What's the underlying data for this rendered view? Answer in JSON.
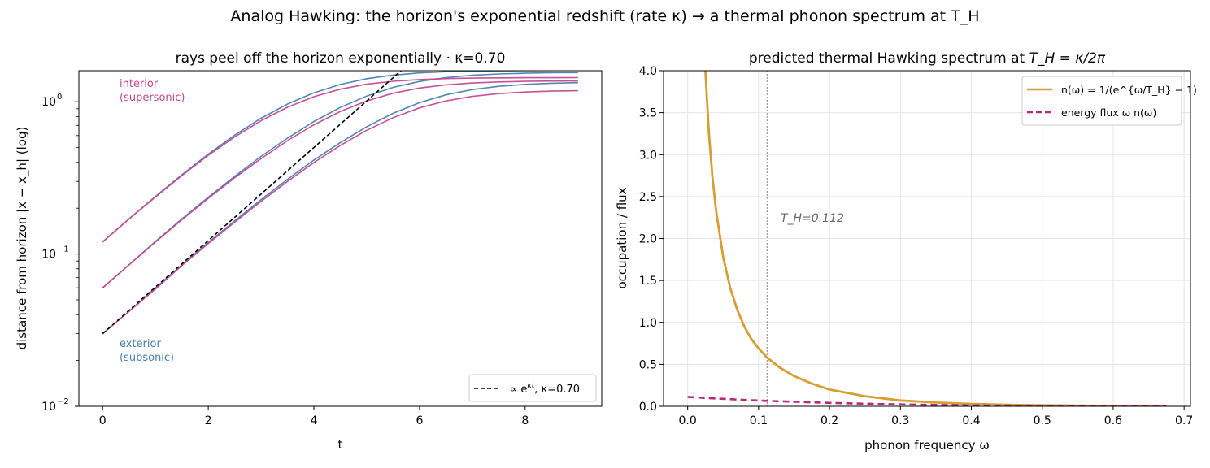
{
  "figure": {
    "suptitle": "Analog Hawking: the horizon's exponential redshift (rate κ) → a thermal phonon spectrum at T_H"
  },
  "colors": {
    "exterior": "#4a7fb3",
    "interior": "#c4488f",
    "fit": "#000000",
    "occupation": "#d69e33",
    "flux": "#b52a7c",
    "th_line": "#999999"
  },
  "chart_data": [
    {
      "type": "line",
      "title": "rays peel off the horizon exponentially  ·  κ=0.70",
      "xlabel": "t",
      "ylabel": "distance from horizon  |x − x_h|  (log)",
      "xlim": [
        -0.45,
        9.45
      ],
      "ylim": [
        0.01,
        1.6
      ],
      "yscale": "log",
      "xticks": [
        0,
        2,
        4,
        6,
        8
      ],
      "xtick_labels": [
        "0",
        "2",
        "4",
        "6",
        "8"
      ],
      "yticks": [
        0.01,
        0.1,
        1
      ],
      "ytick_labels": [
        "10",
        "10",
        "10"
      ],
      "ytick_exponents": [
        "−2",
        "−1",
        "0"
      ],
      "grid": false,
      "legend": {
        "placement": "lower-right",
        "entries": [
          {
            "label": "∝ e^{κt}, κ=0.70",
            "label_main": "∝ e",
            "label_sup": "κt",
            "label_rest": ", κ=0.70"
          }
        ]
      },
      "annotations": {
        "interior": "interior\n(supersonic)",
        "interior_lines": [
          "interior",
          "(supersonic)"
        ],
        "exterior": "exterior\n(subsonic)",
        "exterior_lines": [
          "exterior",
          "(subsonic)"
        ]
      },
      "kappa": 0.7,
      "t": [
        0,
        0.5,
        1,
        1.5,
        2,
        2.5,
        3,
        3.5,
        4,
        4.5,
        5,
        5.5,
        6,
        6.5,
        7,
        7.5,
        8,
        8.5,
        9
      ],
      "series": [
        {
          "group": "exterior",
          "values": [
            0.12,
            0.17,
            0.239,
            0.332,
            0.453,
            0.604,
            0.78,
            0.967,
            1.146,
            1.3,
            1.418,
            1.498,
            1.548,
            1.576,
            1.591,
            1.599,
            1.603,
            1.605,
            1.606
          ]
        },
        {
          "group": "exterior",
          "values": [
            0.06,
            0.085,
            0.121,
            0.17,
            0.236,
            0.324,
            0.438,
            0.578,
            0.742,
            0.918,
            1.09,
            1.243,
            1.36,
            1.441,
            1.493,
            1.524,
            1.541,
            1.551,
            1.556
          ]
        },
        {
          "group": "exterior",
          "values": [
            0.03,
            0.042,
            0.06,
            0.085,
            0.119,
            0.165,
            0.228,
            0.31,
            0.414,
            0.54,
            0.686,
            0.84,
            0.987,
            1.111,
            1.203,
            1.264,
            1.302,
            1.324,
            1.336
          ]
        },
        {
          "group": "interior",
          "values": [
            0.12,
            0.17,
            0.237,
            0.328,
            0.445,
            0.588,
            0.752,
            0.922,
            1.08,
            1.211,
            1.304,
            1.364,
            1.4,
            1.42,
            1.43,
            1.436,
            1.439,
            1.44,
            1.441
          ]
        },
        {
          "group": "interior",
          "values": [
            0.06,
            0.085,
            0.12,
            0.168,
            0.232,
            0.317,
            0.424,
            0.556,
            0.706,
            0.864,
            1.013,
            1.139,
            1.231,
            1.292,
            1.329,
            1.35,
            1.362,
            1.368,
            1.371
          ]
        },
        {
          "group": "interior",
          "values": [
            0.03,
            0.042,
            0.059,
            0.084,
            0.117,
            0.162,
            0.222,
            0.3,
            0.399,
            0.517,
            0.65,
            0.786,
            0.912,
            1.013,
            1.085,
            1.131,
            1.159,
            1.175,
            1.183
          ]
        }
      ],
      "fit_line": {
        "group": "fit",
        "x": [
          0,
          5.65
        ],
        "values": [
          0.03,
          1.6
        ]
      }
    },
    {
      "type": "line",
      "title": "predicted thermal Hawking spectrum at T_H = κ/2π",
      "title_main": "predicted thermal Hawking spectrum at ",
      "title_math": "T_H = κ/2π",
      "xlabel": "phonon frequency  ω",
      "ylabel": "occupation / flux",
      "xlim": [
        -0.034,
        0.709
      ],
      "ylim": [
        0,
        4.0
      ],
      "xticks": [
        0,
        0.1,
        0.2,
        0.3,
        0.4,
        0.5,
        0.6,
        0.7
      ],
      "xtick_labels": [
        "0.0",
        "0.1",
        "0.2",
        "0.3",
        "0.4",
        "0.5",
        "0.6",
        "0.7"
      ],
      "yticks": [
        0,
        0.5,
        1,
        1.5,
        2,
        2.5,
        3,
        3.5,
        4
      ],
      "ytick_labels": [
        "0.0",
        "0.5",
        "1.0",
        "1.5",
        "2.0",
        "2.5",
        "3.0",
        "3.5",
        "4.0"
      ],
      "grid": true,
      "legend": {
        "placement": "upper-right",
        "entries": [
          {
            "label": "n(ω) = 1/(e^{ω/T_H} − 1)"
          },
          {
            "label": "energy flux  ω n(ω)"
          }
        ]
      },
      "T_H": 0.112,
      "th_annotation": "T_H=0.112",
      "x": [
        0.025,
        0.03,
        0.035,
        0.04,
        0.05,
        0.06,
        0.07,
        0.08,
        0.09,
        0.1,
        0.112,
        0.13,
        0.15,
        0.175,
        0.2,
        0.25,
        0.3,
        0.35,
        0.4,
        0.45,
        0.5,
        0.55,
        0.6,
        0.65,
        0.675
      ],
      "series": [
        {
          "name": "n(ω) = 1/(e^{ω/T_H} − 1)",
          "values": [
            3.99,
            3.25,
            2.73,
            2.34,
            1.78,
            1.41,
            1.15,
            0.95,
            0.8,
            0.69,
            0.58,
            0.46,
            0.36,
            0.27,
            0.2,
            0.12,
            0.07,
            0.045,
            0.029,
            0.018,
            0.012,
            0.008,
            0.005,
            0.003,
            0.002
          ]
        },
        {
          "name": "energy flux  ω n(ω)",
          "values": [
            0.1,
            0.097,
            0.095,
            0.094,
            0.089,
            0.085,
            0.08,
            0.076,
            0.072,
            0.069,
            0.065,
            0.06,
            0.054,
            0.047,
            0.041,
            0.031,
            0.022,
            0.016,
            0.011,
            0.008,
            0.006,
            0.004,
            0.003,
            0.002,
            0.0015
          ]
        }
      ],
      "series_full_start": {
        "x": [
          0,
          0.01,
          0.02
        ],
        "flux": [
          0.112,
          0.107,
          0.102
        ]
      }
    }
  ]
}
